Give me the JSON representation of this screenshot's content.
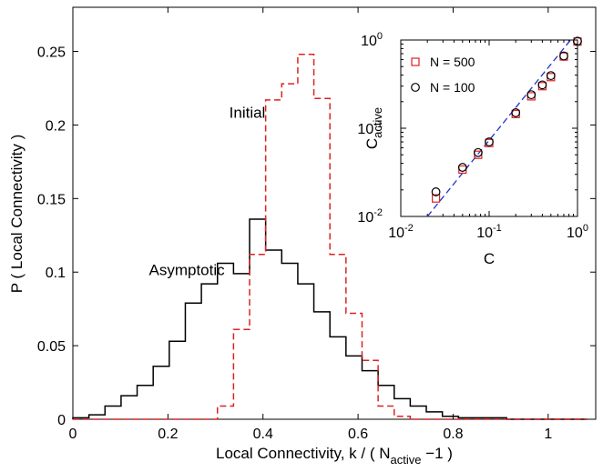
{
  "chart_data": [
    {
      "type": "line",
      "chart_style": "step-histogram",
      "xlabel_main": "Local Connectivity, k / ( N",
      "xlabel_sub": "active",
      "xlabel_tail": " −1 )",
      "ylabel": "P ( Local Connectivity )",
      "xlim": [
        0,
        1.1
      ],
      "ylim": [
        0,
        0.28
      ],
      "x_ticks": [
        0,
        0.2,
        0.4,
        0.6,
        0.8,
        1
      ],
      "x_tick_labels": [
        "0",
        "0.2",
        "0.4",
        "0.6",
        "0.8",
        "1"
      ],
      "y_ticks": [
        0,
        0.05,
        0.1,
        0.15,
        0.2,
        0.25
      ],
      "y_tick_labels": [
        "0",
        "0.05",
        "0.1",
        "0.15",
        "0.2",
        "0.25"
      ],
      "grid": false,
      "annotations": [
        {
          "text": "Initial",
          "x": 0.405,
          "y": 0.205,
          "color": "#dd2222"
        },
        {
          "text": "Asymptotic",
          "x": 0.16,
          "y": 0.098,
          "color": "#000000"
        }
      ],
      "series": [
        {
          "style": "solid",
          "color": "#000000",
          "bin_width": 0.0338,
          "edges_start": 0,
          "values": [
            0.001,
            0.003,
            0.009,
            0.016,
            0.023,
            0.036,
            0.053,
            0.079,
            0.092,
            0.106,
            0.099,
            0.136,
            0.115,
            0.106,
            0.092,
            0.073,
            0.056,
            0.043,
            0.033,
            0.023,
            0.014,
            0.009,
            0.005,
            0.002,
            0.001,
            0.001,
            0.001,
            0,
            0,
            0,
            0,
            0
          ]
        },
        {
          "style": "dashed",
          "color": "#dd2222",
          "bin_width": 0.0338,
          "edges_start": 0,
          "values": [
            0,
            0,
            0,
            0,
            0,
            0,
            0,
            0,
            0,
            0.009,
            0.061,
            0.112,
            0.217,
            0.228,
            0.248,
            0.218,
            0.112,
            0.072,
            0.04,
            0.009,
            0.002,
            0,
            0,
            0,
            0,
            0,
            0,
            0,
            0,
            0,
            0,
            0
          ]
        }
      ]
    },
    {
      "type": "scatter",
      "inset": true,
      "xscale": "log",
      "yscale": "log",
      "xlim": [
        0.01,
        1
      ],
      "ylim": [
        0.01,
        1
      ],
      "xlabel": "C",
      "ylabel_main": "C",
      "ylabel_sub": "active",
      "x_ticks": [
        0.01,
        0.1,
        1
      ],
      "y_ticks": [
        0.01,
        0.1,
        1
      ],
      "tick_base": "10",
      "tick_exponents": [
        "-2",
        "-1",
        "0"
      ],
      "legend_placement": "upper-left",
      "series": [
        {
          "name": "N = 500",
          "marker": "square",
          "color": "#dd2222",
          "x": [
            0.025,
            0.05,
            0.075,
            0.1,
            0.2,
            0.3,
            0.4,
            0.5,
            0.7,
            1.0
          ],
          "y": [
            0.016,
            0.034,
            0.05,
            0.068,
            0.145,
            0.23,
            0.3,
            0.38,
            0.65,
            0.96
          ]
        },
        {
          "name": "N = 100",
          "marker": "circle",
          "color": "#000000",
          "x": [
            0.025,
            0.05,
            0.075,
            0.1,
            0.2,
            0.3,
            0.4,
            0.5,
            0.7,
            1.0
          ],
          "y": [
            0.019,
            0.036,
            0.053,
            0.07,
            0.15,
            0.24,
            0.31,
            0.395,
            0.66,
            0.97
          ]
        }
      ],
      "reference_line": {
        "style": "dashed",
        "color": "#2233cc",
        "x": [
          0.02,
          1.0
        ],
        "y": [
          0.01,
          1.25
        ]
      }
    }
  ]
}
